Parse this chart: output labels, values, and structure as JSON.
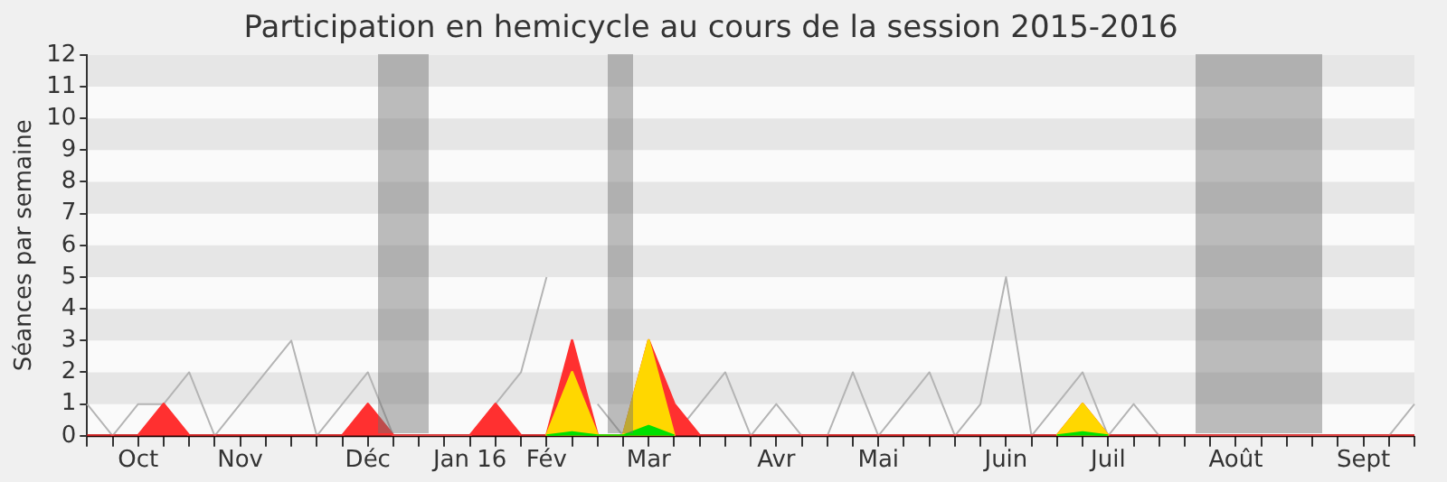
{
  "chart_data": {
    "type": "area",
    "title": "Participation en hemicycle au cours de la session 2015-2016",
    "ylabel": "Séances par semaine",
    "categories": [
      null,
      null,
      "Oct",
      null,
      null,
      null,
      "Nov",
      null,
      null,
      null,
      null,
      "Déc",
      null,
      null,
      null,
      "Jan 16",
      null,
      null,
      "Fév",
      null,
      null,
      null,
      "Mar",
      null,
      null,
      null,
      null,
      "Avr",
      null,
      null,
      null,
      "Mai",
      null,
      null,
      null,
      null,
      "Juin",
      null,
      null,
      null,
      "Juil",
      null,
      null,
      null,
      null,
      "Août",
      null,
      null,
      null,
      null,
      "Sept",
      null,
      null
    ],
    "series": [
      {
        "type": "area",
        "color": "#00e000",
        "values": [
          null,
          null,
          null,
          null,
          null,
          null,
          null,
          null,
          null,
          null,
          null,
          null,
          null,
          null,
          null,
          null,
          null,
          null,
          0,
          0.1,
          0,
          0,
          0.3,
          0,
          null,
          null,
          null,
          null,
          null,
          null,
          null,
          null,
          null,
          null,
          null,
          null,
          null,
          null,
          0,
          0.1,
          0,
          null,
          null,
          null,
          null,
          null,
          null,
          null,
          null,
          null,
          null,
          null,
          null
        ]
      },
      {
        "type": "area",
        "color": "#ffd700",
        "values": [
          null,
          null,
          null,
          null,
          null,
          null,
          null,
          null,
          null,
          null,
          null,
          null,
          null,
          null,
          null,
          null,
          null,
          null,
          0,
          2,
          0,
          0,
          3,
          0,
          null,
          null,
          null,
          null,
          null,
          null,
          null,
          null,
          null,
          null,
          null,
          null,
          null,
          null,
          0,
          1,
          0,
          null,
          null,
          null,
          null,
          null,
          null,
          null,
          null,
          null,
          null,
          null,
          null
        ]
      },
      {
        "type": "area",
        "color": "#ff3030",
        "values": [
          0,
          0,
          0,
          1,
          0,
          0,
          0,
          0,
          0,
          0,
          0,
          1,
          0,
          0,
          0,
          0,
          1,
          0,
          0,
          3,
          0,
          0,
          3,
          1,
          0,
          0,
          0,
          0,
          0,
          0,
          0,
          0,
          0,
          0,
          0,
          0,
          0,
          0,
          0,
          1,
          0,
          0,
          0,
          0,
          0,
          0,
          0,
          0,
          0,
          0,
          0,
          0,
          0
        ]
      },
      {
        "type": "line",
        "color": "#b4b4b4",
        "values": [
          1,
          0,
          1,
          1,
          2,
          0,
          1,
          2,
          3,
          0,
          1,
          2,
          0,
          0,
          0,
          0,
          1,
          2,
          5,
          null,
          1,
          0,
          null,
          0,
          1,
          2,
          0,
          1,
          0,
          0,
          2,
          0,
          1,
          2,
          0,
          1,
          5,
          0,
          1,
          2,
          0,
          1,
          0,
          0,
          0,
          0,
          0,
          0,
          0,
          0,
          0,
          0,
          1
        ]
      }
    ],
    "ylim": [
      0,
      12
    ],
    "yticks": [
      0,
      1,
      2,
      3,
      4,
      5,
      6,
      7,
      8,
      9,
      10,
      11,
      12
    ],
    "legend": false,
    "marker": "none",
    "line_style": "solid"
  }
}
